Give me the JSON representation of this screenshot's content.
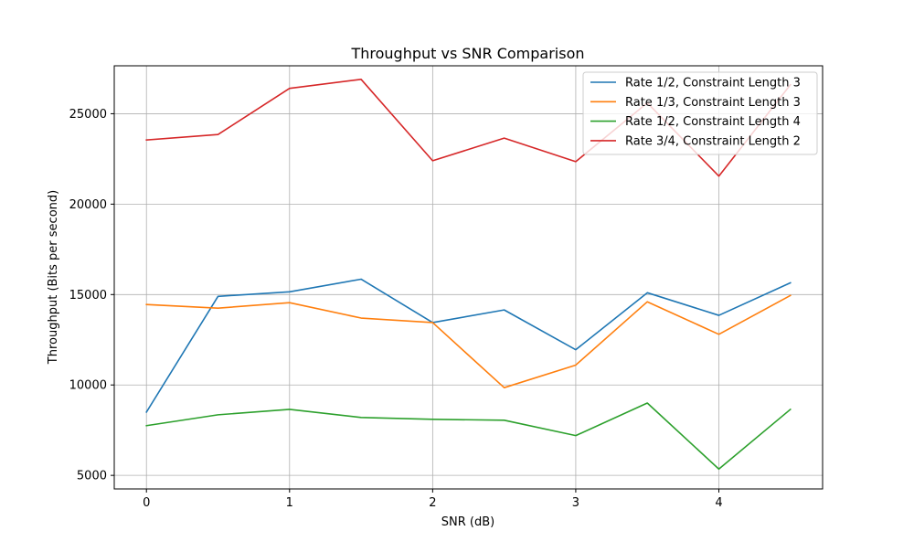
{
  "chart_data": {
    "type": "line",
    "title": "Throughput vs SNR Comparison",
    "xlabel": "SNR (dB)",
    "ylabel": "Throughput (Bits per second)",
    "x": [
      0,
      0.5,
      1,
      1.5,
      2,
      2.5,
      3,
      3.5,
      4,
      4.5
    ],
    "xlim": [
      -0.225,
      4.725
    ],
    "ylim": [
      4250,
      27650
    ],
    "xticks": [
      0,
      1,
      2,
      3,
      4
    ],
    "yticks": [
      5000,
      10000,
      15000,
      20000,
      25000
    ],
    "grid": true,
    "legend_position": "top-right",
    "series": [
      {
        "name": "Rate 1/2, Constraint Length 3",
        "color": "#1f77b4",
        "values": [
          8500,
          14900,
          15150,
          15850,
          13450,
          14150,
          11950,
          15100,
          13850,
          15650
        ]
      },
      {
        "name": "Rate 1/3, Constraint Length 3",
        "color": "#ff7f0e",
        "values": [
          14450,
          14250,
          14550,
          13700,
          13450,
          9850,
          11100,
          14600,
          12800,
          14950
        ]
      },
      {
        "name": "Rate 1/2, Constraint Length 4",
        "color": "#2ca02c",
        "values": [
          7750,
          8350,
          8650,
          8200,
          8100,
          8050,
          7200,
          9000,
          5350,
          8650
        ]
      },
      {
        "name": "Rate 3/4, Constraint Length 2",
        "color": "#d62728",
        "values": [
          23550,
          23850,
          26400,
          26900,
          22400,
          23650,
          22350,
          25600,
          21550,
          26600
        ]
      }
    ]
  }
}
